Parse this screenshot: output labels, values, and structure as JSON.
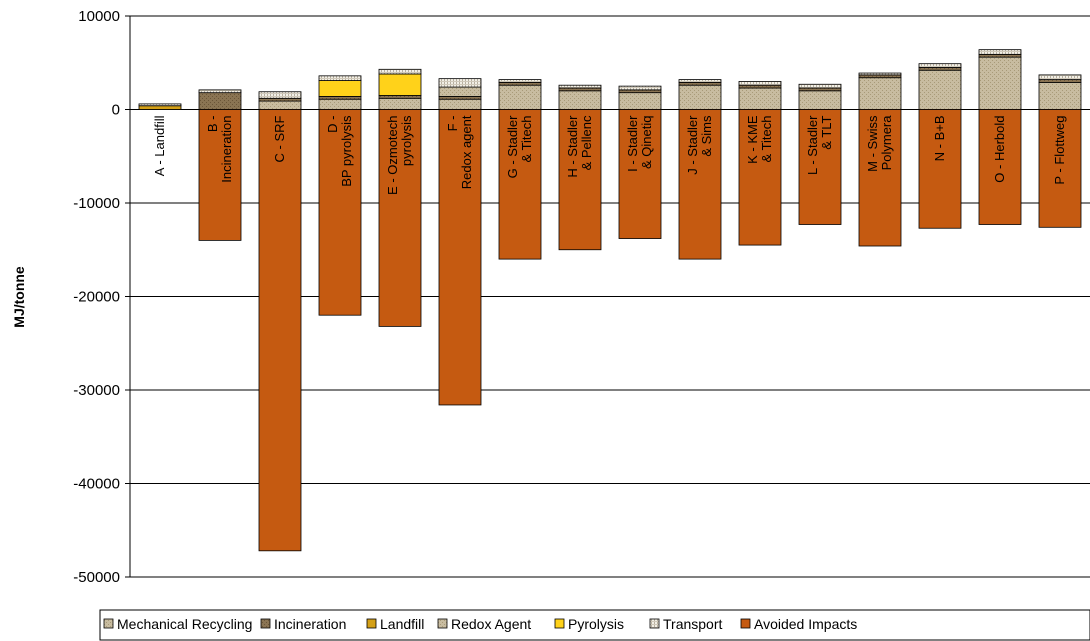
{
  "chart_data": {
    "type": "bar",
    "stacked": true,
    "ylabel": "MJ/tonne",
    "ylim": [
      -50000,
      10000
    ],
    "yticks": [
      "10000",
      "0",
      "-10000",
      "-20000",
      "-30000",
      "-40000",
      "-50000"
    ],
    "yticks_values": [
      10000,
      0,
      -10000,
      -20000,
      -30000,
      -40000,
      -50000
    ],
    "legend_position": "bottom",
    "grid": true,
    "categories": [
      "A - Landfill",
      "B - Incineration",
      "C - SRF",
      "D - BP pyrolysis",
      "E - Ozmotech pyrolysis",
      "F - Redox agent",
      "G - Stadler & Titech",
      "H - Stadler & Pellenc",
      "I - Stadler & Qinetiq",
      "J - Stadler & Sims",
      "K - KME & Titech",
      "L - Stadler & TLT",
      "M - Swiss Polymera",
      "N - B+B",
      "O - Herbold",
      "P - Flottweg"
    ],
    "series": [
      {
        "name": "Mechanical Recycling",
        "color": "#c8bca0",
        "pattern": "dots-light",
        "values": [
          0,
          0,
          900,
          1100,
          1200,
          1100,
          2600,
          2000,
          1800,
          2600,
          2300,
          2000,
          3400,
          4200,
          5600,
          2900
        ]
      },
      {
        "name": "Incineration",
        "color": "#8a7453",
        "pattern": "dots-dark",
        "values": [
          0,
          1800,
          300,
          300,
          300,
          300,
          300,
          300,
          300,
          300,
          300,
          300,
          300,
          300,
          300,
          300
        ]
      },
      {
        "name": "Landfill",
        "color": "#d4a017",
        "pattern": "none",
        "values": [
          400,
          0,
          0,
          0,
          0,
          0,
          0,
          0,
          0,
          0,
          0,
          0,
          0,
          0,
          0,
          0
        ]
      },
      {
        "name": "Redox Agent",
        "color": "#c8bca0",
        "pattern": "dots-light",
        "values": [
          0,
          0,
          0,
          0,
          0,
          1000,
          0,
          0,
          0,
          0,
          0,
          0,
          0,
          0,
          0,
          0
        ]
      },
      {
        "name": "Pyrolysis",
        "color": "#ffd21a",
        "pattern": "none",
        "values": [
          0,
          0,
          0,
          1700,
          2300,
          0,
          0,
          0,
          0,
          0,
          0,
          0,
          0,
          0,
          0,
          0
        ]
      },
      {
        "name": "Transport",
        "color": "#eeeae0",
        "pattern": "hatch",
        "values": [
          200,
          300,
          700,
          500,
          500,
          900,
          300,
          300,
          400,
          300,
          400,
          400,
          200,
          400,
          500,
          500
        ]
      },
      {
        "name": "Avoided Impacts",
        "color": "#c55a11",
        "pattern": "none",
        "values": [
          0,
          -14000,
          -47200,
          -22000,
          -23200,
          -31600,
          -16000,
          -15000,
          -13800,
          -16000,
          -14500,
          -12300,
          -14600,
          -12700,
          -12300,
          -12600
        ]
      }
    ]
  }
}
